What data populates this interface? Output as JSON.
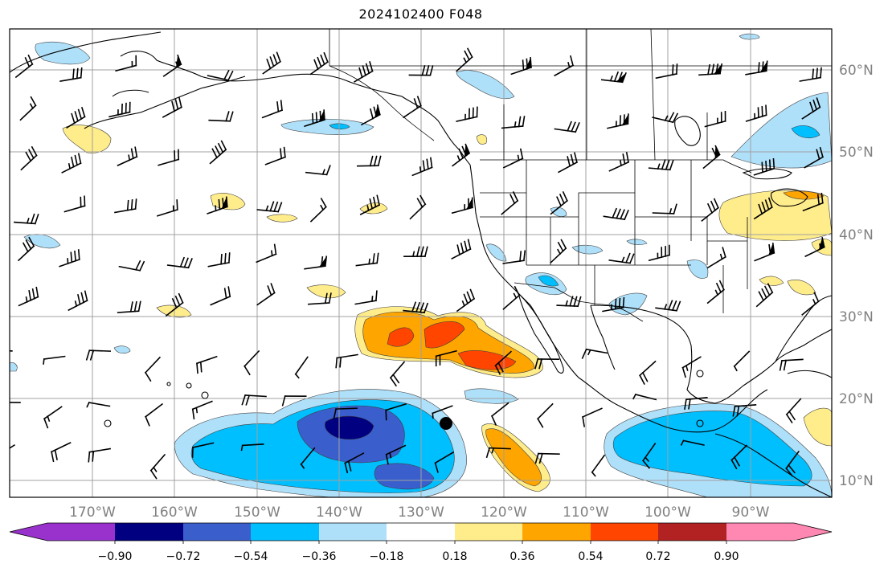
{
  "title": "2024102400 F048",
  "map": {
    "lat_labels": [
      "60°N",
      "50°N",
      "40°N",
      "30°N",
      "20°N",
      "10°N"
    ],
    "lon_labels": [
      "170°W",
      "160°W",
      "150°W",
      "140°W",
      "130°W",
      "120°W",
      "110°W",
      "100°W",
      "90°W"
    ]
  },
  "colorbar": {
    "tick_labels": [
      "−0.90",
      "−0.72",
      "−0.54",
      "−0.36",
      "−0.18",
      "0.18",
      "0.36",
      "0.54",
      "0.72",
      "0.90"
    ],
    "colors": [
      "#9932cc",
      "#000080",
      "#3a5fcd",
      "#00bfff",
      "#afe0fa",
      "#ffffff",
      "#ffec8b",
      "#ffa500",
      "#ff4500",
      "#b22222",
      "#ff88b2"
    ]
  },
  "colors": {
    "contour_line": "#404040",
    "gridline": "#a0a0a0",
    "axis_label": "#808080"
  }
}
